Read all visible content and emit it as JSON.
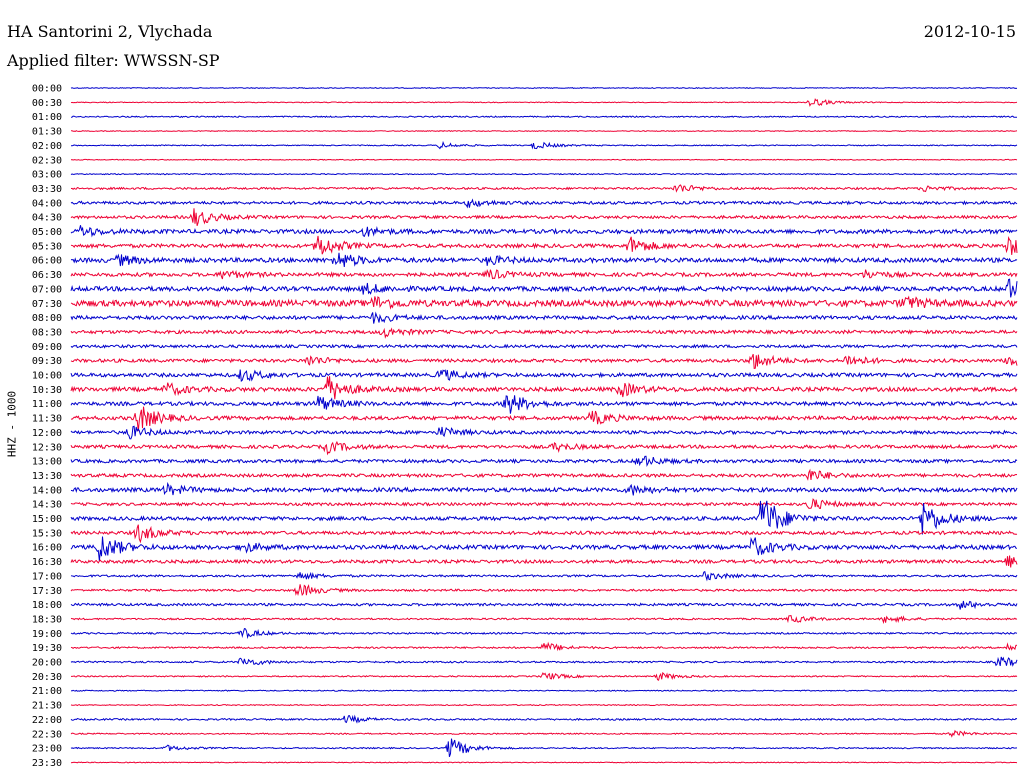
{
  "header": {
    "station": "HA Santorini 2, Vlychada",
    "date": "2012-10-15",
    "filter": "Applied filter: WWSSN-SP"
  },
  "chart_data": {
    "type": "line",
    "ylabel": "HHZ - 1000",
    "rows": [
      "00:00",
      "00:30",
      "01:00",
      "01:30",
      "02:00",
      "02:30",
      "03:00",
      "03:30",
      "04:00",
      "04:30",
      "05:00",
      "05:30",
      "06:00",
      "06:30",
      "07:00",
      "07:30",
      "08:00",
      "08:30",
      "09:00",
      "09:30",
      "10:00",
      "10:30",
      "11:00",
      "11:30",
      "12:00",
      "12:30",
      "13:00",
      "13:30",
      "14:00",
      "14:30",
      "15:00",
      "15:30",
      "16:00",
      "16:30",
      "17:00",
      "17:30",
      "18:00",
      "18:30",
      "19:00",
      "19:30",
      "20:00",
      "20:30",
      "21:00",
      "21:30",
      "22:00",
      "22:30",
      "23:00",
      "23:30"
    ],
    "colors": [
      "#0000cc",
      "#ee0033"
    ],
    "noise": [
      0.4,
      0.4,
      0.6,
      0.4,
      0.5,
      0.4,
      0.5,
      1.0,
      1.4,
      1.4,
      2.0,
      1.8,
      2.2,
      1.8,
      2.2,
      3.0,
      1.8,
      1.6,
      1.4,
      1.6,
      1.8,
      2.0,
      1.8,
      1.8,
      1.6,
      1.6,
      1.6,
      1.6,
      2.0,
      1.4,
      1.8,
      1.6,
      2.0,
      1.6,
      1.0,
      1.0,
      1.2,
      0.8,
      0.8,
      0.8,
      0.8,
      0.6,
      0.5,
      0.5,
      0.8,
      0.6,
      0.6,
      0.4
    ],
    "events": {
      "00:30": [
        [
          0.78,
          5
        ]
      ],
      "02:00": [
        [
          0.39,
          3
        ],
        [
          0.49,
          4
        ]
      ],
      "03:30": [
        [
          0.64,
          5
        ],
        [
          0.9,
          3
        ]
      ],
      "04:00": [
        [
          0.42,
          4
        ]
      ],
      "04:30": [
        [
          0.13,
          9
        ]
      ],
      "05:00": [
        [
          0.01,
          5
        ],
        [
          0.31,
          4
        ]
      ],
      "05:30": [
        [
          0.26,
          12
        ],
        [
          0.59,
          9
        ],
        [
          0.99,
          10
        ]
      ],
      "06:00": [
        [
          0.05,
          5
        ],
        [
          0.28,
          9
        ],
        [
          0.44,
          4
        ]
      ],
      "06:30": [
        [
          0.16,
          4
        ],
        [
          0.44,
          5
        ],
        [
          0.84,
          4
        ]
      ],
      "07:00": [
        [
          0.31,
          5
        ],
        [
          0.99,
          10
        ]
      ],
      "07:30": [
        [
          0.32,
          6
        ],
        [
          0.88,
          6
        ]
      ],
      "08:00": [
        [
          0.32,
          5
        ]
      ],
      "08:30": [
        [
          0.33,
          5
        ]
      ],
      "09:30": [
        [
          0.25,
          5
        ],
        [
          0.72,
          9
        ],
        [
          0.82,
          6
        ],
        [
          0.99,
          6
        ]
      ],
      "10:00": [
        [
          0.18,
          6
        ],
        [
          0.39,
          6
        ]
      ],
      "10:30": [
        [
          0.1,
          6
        ],
        [
          0.27,
          14
        ],
        [
          0.58,
          7
        ]
      ],
      "11:00": [
        [
          0.26,
          8
        ],
        [
          0.46,
          12
        ]
      ],
      "11:30": [
        [
          0.07,
          14
        ],
        [
          0.55,
          7
        ]
      ],
      "12:00": [
        [
          0.06,
          7
        ],
        [
          0.39,
          5
        ]
      ],
      "12:30": [
        [
          0.27,
          6
        ],
        [
          0.51,
          4
        ]
      ],
      "13:00": [
        [
          0.6,
          6
        ]
      ],
      "13:30": [
        [
          0.78,
          6
        ]
      ],
      "14:00": [
        [
          0.1,
          5
        ],
        [
          0.59,
          5
        ]
      ],
      "14:30": [
        [
          0.78,
          6
        ]
      ],
      "15:00": [
        [
          0.73,
          25
        ],
        [
          0.9,
          18
        ]
      ],
      "15:30": [
        [
          0.07,
          9
        ]
      ],
      "16:00": [
        [
          0.03,
          14
        ],
        [
          0.18,
          5
        ],
        [
          0.72,
          10
        ]
      ],
      "16:30": [
        [
          0.99,
          6
        ]
      ],
      "17:00": [
        [
          0.24,
          4
        ],
        [
          0.67,
          4
        ]
      ],
      "17:30": [
        [
          0.24,
          7
        ]
      ],
      "18:00": [
        [
          0.94,
          4
        ]
      ],
      "18:30": [
        [
          0.76,
          4
        ],
        [
          0.86,
          4
        ]
      ],
      "19:00": [
        [
          0.18,
          5
        ]
      ],
      "19:30": [
        [
          0.5,
          5
        ],
        [
          0.99,
          4
        ]
      ],
      "20:00": [
        [
          0.18,
          5
        ],
        [
          0.98,
          6
        ]
      ],
      "20:30": [
        [
          0.5,
          4
        ],
        [
          0.62,
          4
        ]
      ],
      "22:00": [
        [
          0.29,
          4
        ]
      ],
      "22:30": [
        [
          0.93,
          3
        ]
      ],
      "23:00": [
        [
          0.1,
          3
        ],
        [
          0.4,
          11
        ]
      ]
    }
  }
}
